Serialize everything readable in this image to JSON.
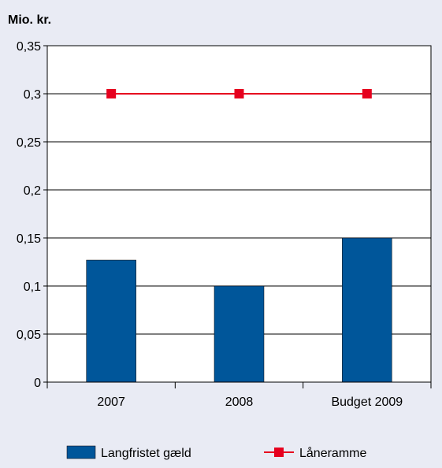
{
  "chart_data": {
    "type": "bar",
    "title": "",
    "unit_label": "Mio. kr.",
    "xlabel": "",
    "ylabel": "",
    "categories": [
      "2007",
      "2008",
      "Budget 2009"
    ],
    "series": [
      {
        "name": "Langfristet gæld",
        "type": "bar",
        "color": "#00569a",
        "values": [
          0.127,
          0.1,
          0.15
        ]
      },
      {
        "name": "Låneramme",
        "type": "line",
        "color": "#e6001e",
        "marker": "square",
        "values": [
          0.3,
          0.3,
          0.3
        ]
      }
    ],
    "ylim": [
      0,
      0.35
    ],
    "yticks": [
      {
        "value": 0,
        "label": "0"
      },
      {
        "value": 0.05,
        "label": "0,05"
      },
      {
        "value": 0.1,
        "label": "0,1"
      },
      {
        "value": 0.15,
        "label": "0,15"
      },
      {
        "value": 0.2,
        "label": "0,2"
      },
      {
        "value": 0.25,
        "label": "0,25"
      },
      {
        "value": 0.3,
        "label": "0,3"
      },
      {
        "value": 0.35,
        "label": "0,35"
      }
    ],
    "grid": true,
    "legend_position": "bottom",
    "colors": {
      "background": "#e9ebf4",
      "plot_background": "#ffffff",
      "gridline": "#000000",
      "axis": "#000000"
    }
  }
}
